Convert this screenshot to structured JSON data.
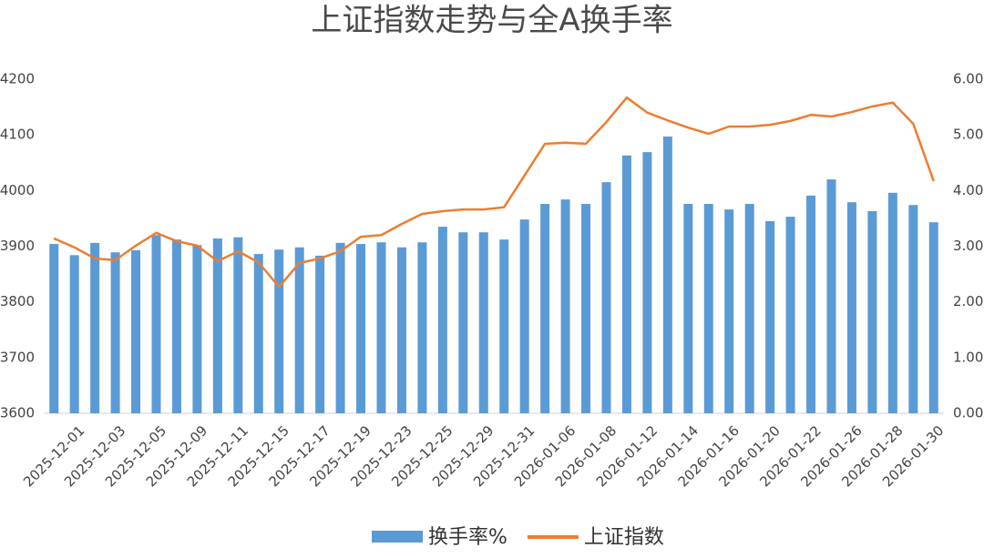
{
  "chart_data": {
    "type": "bar",
    "title": "上证指数走势与全A换手率",
    "categories": [
      null,
      "2025-12-01",
      null,
      "2025-12-03",
      null,
      "2025-12-05",
      null,
      "2025-12-09",
      null,
      "2025-12-11",
      null,
      "2025-12-15",
      null,
      "2025-12-17",
      null,
      "2025-12-19",
      null,
      "2025-12-23",
      null,
      "2025-12-25",
      null,
      "2025-12-29",
      null,
      "2025-12-31",
      null,
      "2026-01-06",
      null,
      "2026-01-08",
      null,
      "2026-01-12",
      null,
      "2026-01-14",
      null,
      "2026-01-16",
      null,
      "2026-01-20",
      null,
      "2026-01-22",
      null,
      "2026-01-26",
      null,
      "2026-01-28",
      null,
      "2026-01-30"
    ],
    "series": [
      {
        "name": "换手率%",
        "type": "bar",
        "axis": "y2",
        "color": "#5b9bd5",
        "values": [
          3.04,
          2.84,
          3.06,
          2.89,
          2.93,
          3.2,
          3.12,
          3.02,
          3.14,
          3.16,
          2.86,
          2.94,
          2.98,
          2.83,
          3.06,
          3.04,
          3.07,
          2.98,
          3.07,
          3.35,
          3.25,
          3.25,
          3.12,
          3.48,
          3.76,
          3.84,
          3.76,
          4.15,
          4.63,
          4.69,
          4.97,
          3.76,
          3.76,
          3.66,
          3.76,
          3.45,
          3.53,
          3.91,
          4.2,
          3.79,
          3.63,
          3.96,
          3.74,
          3.43
        ]
      },
      {
        "name": "上证指数",
        "type": "line",
        "color": "#ed7d31",
        "values": [
          3914,
          3898,
          3878,
          3875,
          3901,
          3924,
          3909,
          3901,
          3873,
          3891,
          3871,
          3827,
          3870,
          3878,
          3891,
          3917,
          3920,
          3940,
          3958,
          3963,
          3966,
          3966,
          3970,
          4027,
          4084,
          4086,
          4084,
          4123,
          4167,
          4140,
          4126,
          4113,
          4102,
          4115,
          4115,
          4118,
          4125,
          4136,
          4133,
          4141,
          4151,
          4158,
          4120,
          4017
        ]
      }
    ],
    "ylim": [
      3600,
      4200
    ],
    "yticks": [
      3600,
      3700,
      3800,
      3900,
      4000,
      4100,
      4200
    ],
    "y2lim": [
      0,
      6
    ],
    "y2ticks": [
      {
        "value": 0,
        "label": "0.00"
      },
      {
        "value": 1,
        "label": "1.00"
      },
      {
        "value": 2,
        "label": "2.00"
      },
      {
        "value": 3,
        "label": "3.00"
      },
      {
        "value": 4,
        "label": "4.00"
      },
      {
        "value": 5,
        "label": "5.00"
      },
      {
        "value": 6,
        "label": "6.00"
      }
    ],
    "grid": false,
    "legend": "bottom"
  }
}
